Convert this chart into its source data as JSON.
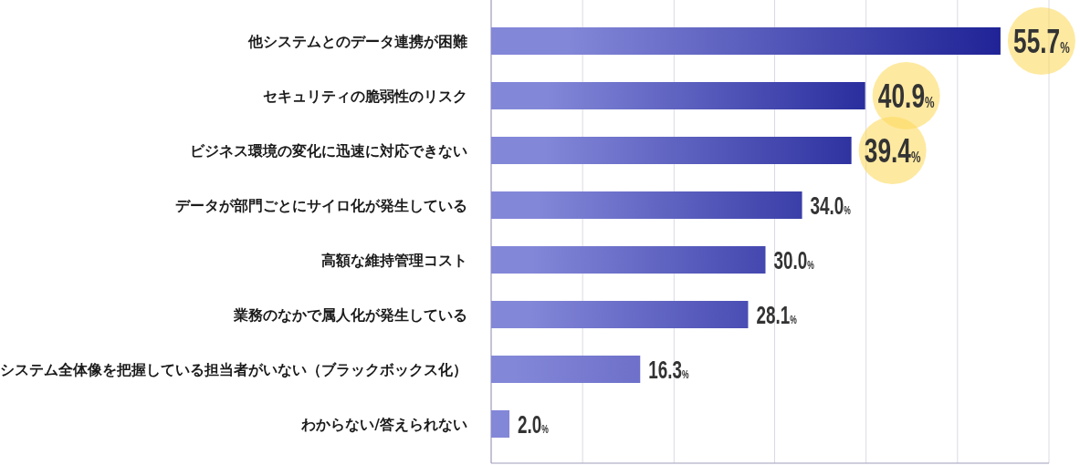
{
  "chart_data": {
    "type": "bar",
    "orientation": "horizontal",
    "categories": [
      "他システムとのデータ連携が困難",
      "セキュリティの脆弱性のリスク",
      "ビジネス環境の変化に迅速に対応できない",
      "データが部門ごとにサイロ化が発生している",
      "高額な維持管理コスト",
      "業務のなかで属人化が発生している",
      "システム全体像を把握している担当者がいない（ブラックボックス化）",
      "わからない/答えられない"
    ],
    "values": [
      55.7,
      40.9,
      39.4,
      34.0,
      30.0,
      28.1,
      16.3,
      2.0
    ],
    "value_labels": [
      "55.7%",
      "40.9%",
      "39.4%",
      "34.0%",
      "30.0%",
      "28.1%",
      "16.3%",
      "2.0%"
    ],
    "colors": [
      "#1f2396",
      "#2a2e9e",
      "#2f33a1",
      "#3a3ea8",
      "#4448af",
      "#4a4db3",
      "#6e70c9",
      "#8387d8"
    ],
    "xlim": [
      0,
      61
    ],
    "xticks": [
      {
        "value": 10,
        "label": null
      },
      {
        "value": 20,
        "label": null
      },
      {
        "value": 31,
        "label": null
      },
      {
        "value": 41,
        "label": null
      },
      {
        "value": 51,
        "label": null
      },
      {
        "value": 61,
        "label": null
      }
    ],
    "grid": "x",
    "tick_labels": "y"
  }
}
